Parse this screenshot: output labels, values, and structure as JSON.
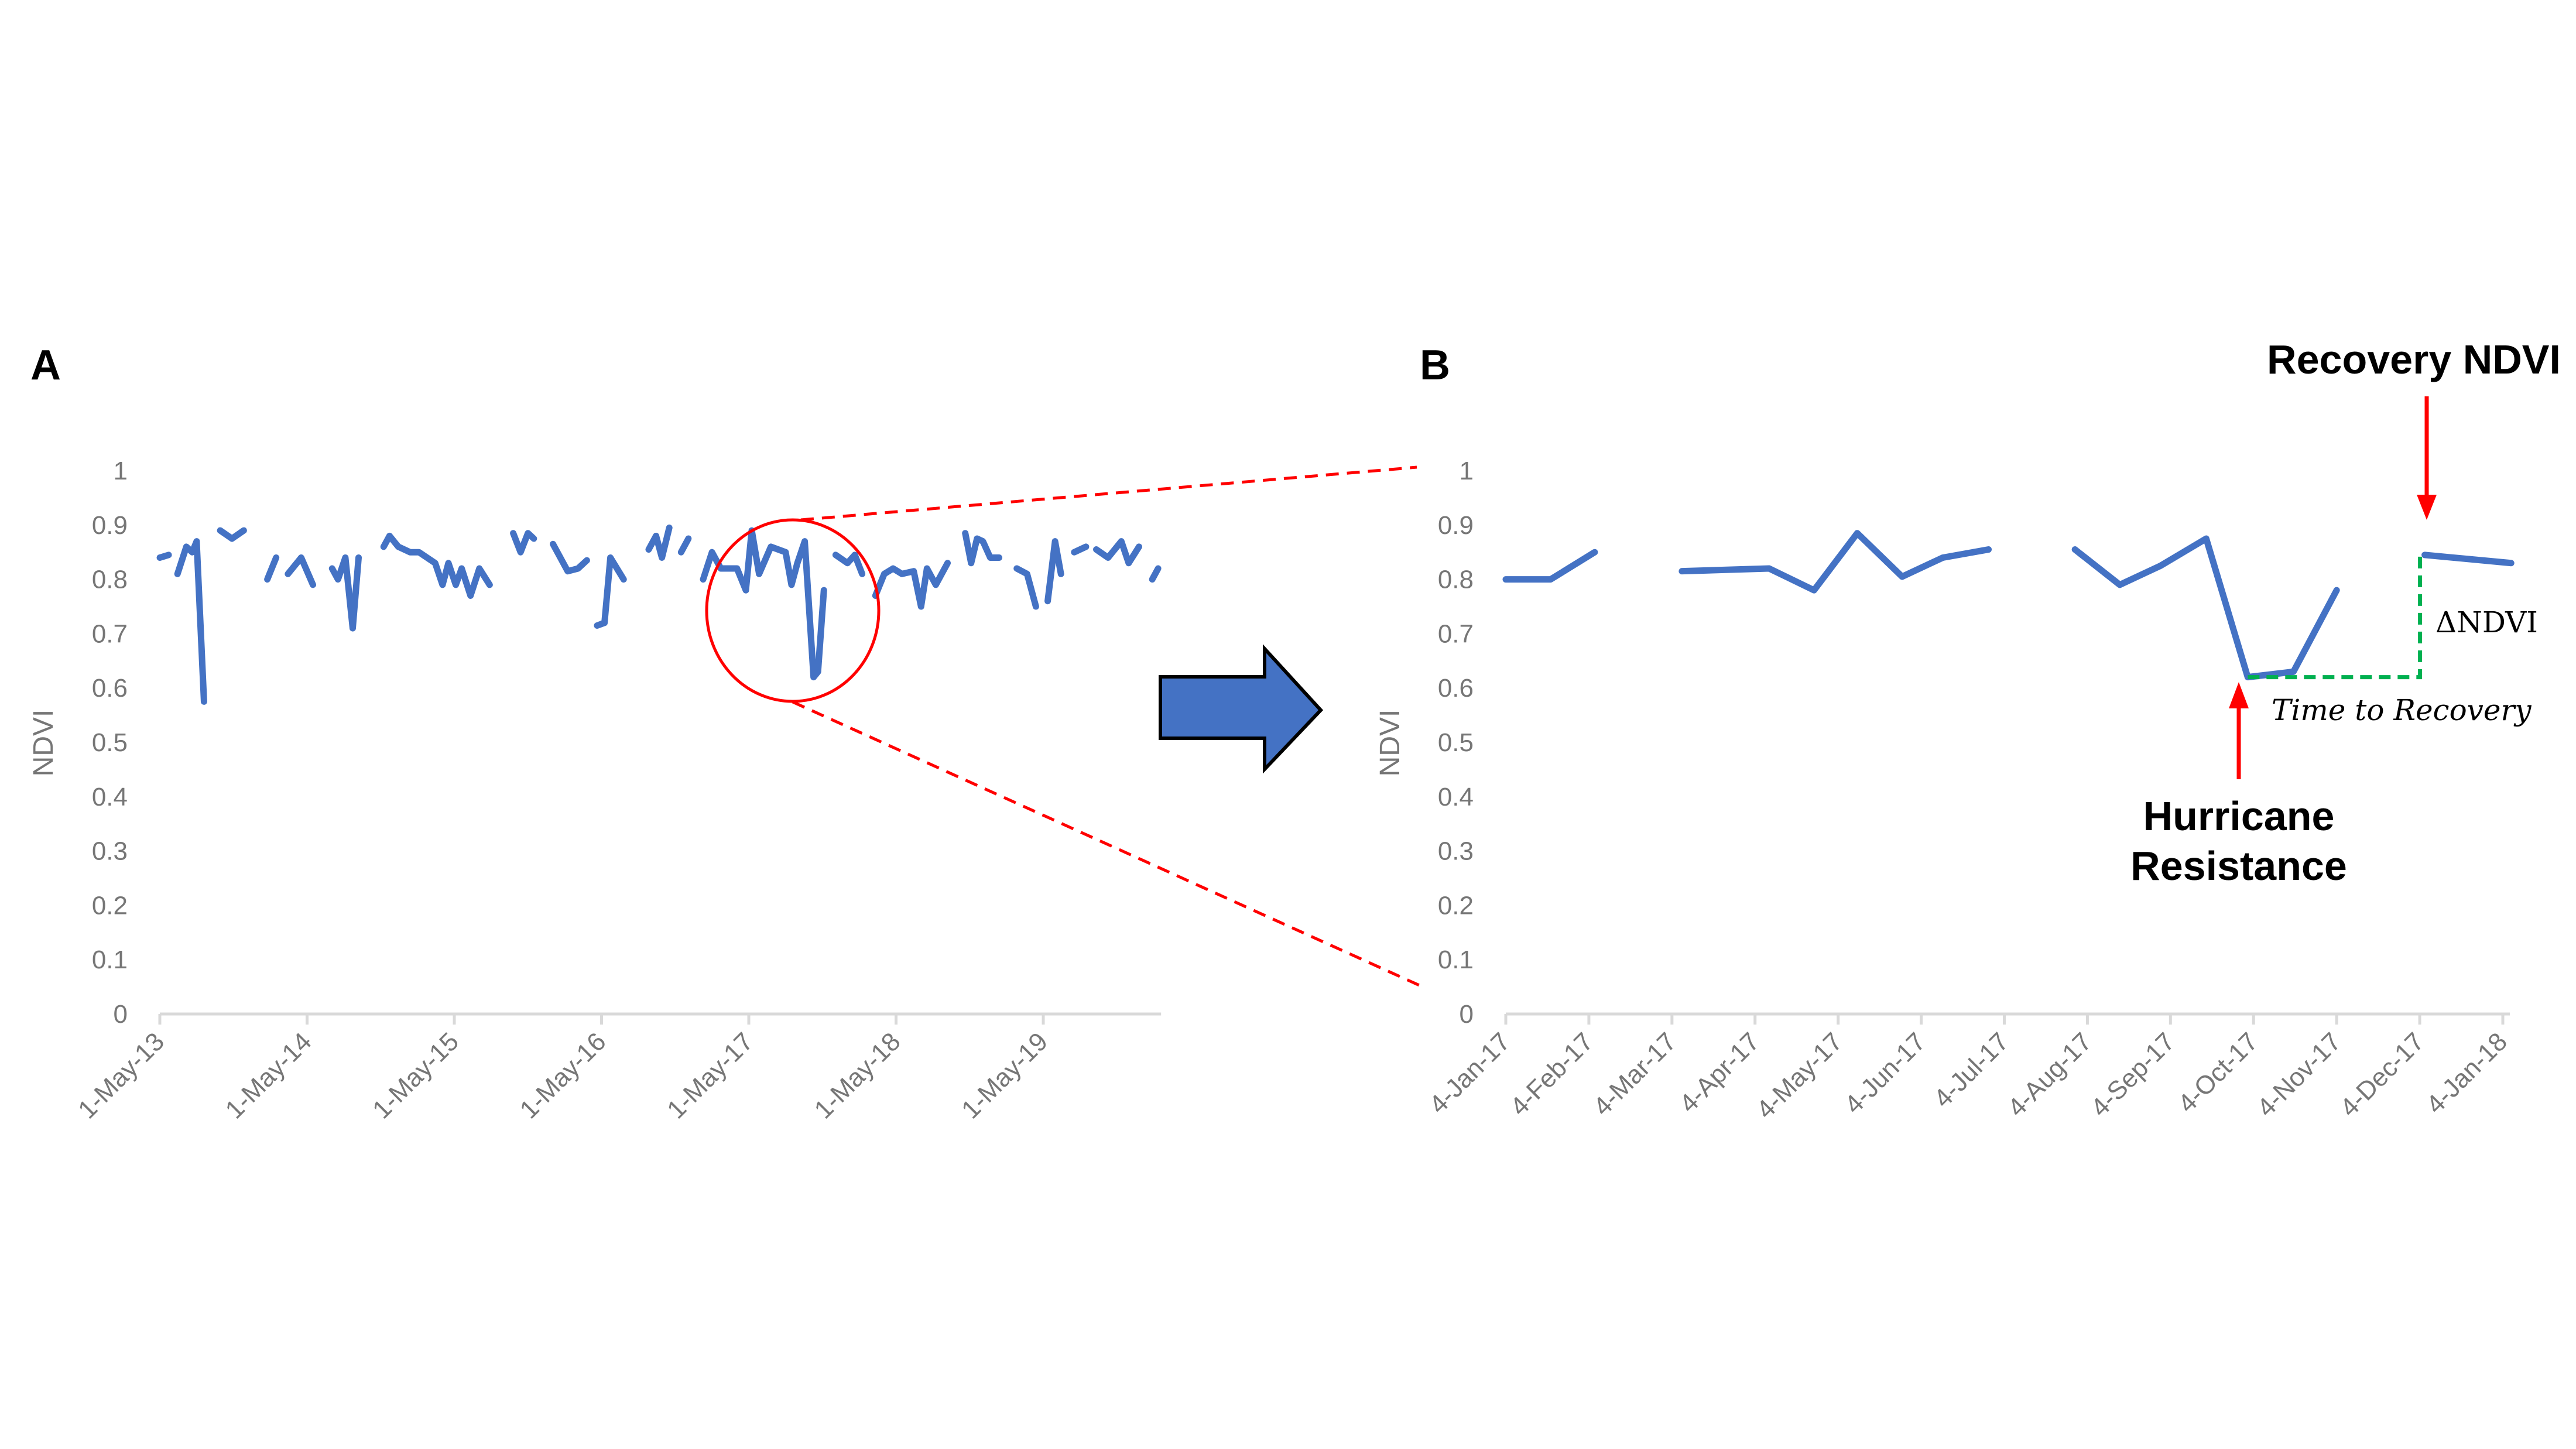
{
  "colors": {
    "series": "#4472C4",
    "axis": "#D9D9D9",
    "tick_text": "#767676",
    "zoom": "#FF0000",
    "delta": "#00B050",
    "arrow_fill": "#4472C4"
  },
  "chart_data": [
    {
      "panel": "A",
      "type": "line",
      "ylabel": "NDVI",
      "xlabel": "",
      "x_unit": "years since 1-May-13",
      "ylim": [
        0,
        1
      ],
      "yticks": [
        "0",
        "0.1",
        "0.2",
        "0.3",
        "0.4",
        "0.5",
        "0.6",
        "0.7",
        "0.8",
        "0.9",
        "1"
      ],
      "xticks": [
        "1-May-13",
        "1-May-14",
        "1-May-15",
        "1-May-16",
        "1-May-17",
        "1-May-18",
        "1-May-19"
      ],
      "xlim": [
        0,
        6.8
      ],
      "segments": [
        [
          [
            0,
            0.84
          ],
          [
            0.06,
            0.845
          ]
        ],
        [
          [
            0.12,
            0.81
          ],
          [
            0.18,
            0.86
          ],
          [
            0.22,
            0.85
          ],
          [
            0.25,
            0.87
          ],
          [
            0.3,
            0.575
          ]
        ],
        [
          [
            0.41,
            0.89
          ],
          [
            0.49,
            0.875
          ],
          [
            0.57,
            0.89
          ]
        ],
        [
          [
            0.73,
            0.8
          ],
          [
            0.79,
            0.84
          ]
        ],
        [
          [
            0.87,
            0.81
          ],
          [
            0.96,
            0.84
          ],
          [
            1.04,
            0.79
          ]
        ],
        [
          [
            1.17,
            0.82
          ],
          [
            1.21,
            0.8
          ],
          [
            1.26,
            0.84
          ],
          [
            1.31,
            0.71
          ],
          [
            1.35,
            0.84
          ]
        ],
        [
          [
            1.52,
            0.86
          ],
          [
            1.56,
            0.88
          ],
          [
            1.62,
            0.86
          ],
          [
            1.7,
            0.85
          ],
          [
            1.76,
            0.85
          ],
          [
            1.87,
            0.83
          ],
          [
            1.92,
            0.79
          ],
          [
            1.96,
            0.83
          ],
          [
            2.01,
            0.79
          ],
          [
            2.05,
            0.82
          ],
          [
            2.11,
            0.77
          ],
          [
            2.17,
            0.82
          ],
          [
            2.24,
            0.79
          ]
        ],
        [
          [
            2.4,
            0.885
          ],
          [
            2.45,
            0.85
          ],
          [
            2.5,
            0.885
          ],
          [
            2.54,
            0.875
          ]
        ],
        [
          [
            2.67,
            0.865
          ],
          [
            2.77,
            0.815
          ],
          [
            2.84,
            0.82
          ],
          [
            2.9,
            0.835
          ]
        ],
        [
          [
            2.97,
            0.715
          ],
          [
            3.02,
            0.72
          ],
          [
            3.06,
            0.84
          ],
          [
            3.15,
            0.8
          ]
        ],
        [
          [
            3.32,
            0.855
          ],
          [
            3.37,
            0.88
          ],
          [
            3.41,
            0.84
          ],
          [
            3.46,
            0.895
          ]
        ],
        [
          [
            3.54,
            0.85
          ],
          [
            3.59,
            0.875
          ]
        ],
        [
          [
            3.69,
            0.8
          ],
          [
            3.75,
            0.85
          ],
          [
            3.81,
            0.82
          ],
          [
            3.92,
            0.82
          ],
          [
            3.98,
            0.78
          ],
          [
            4.02,
            0.89
          ],
          [
            4.07,
            0.81
          ],
          [
            4.15,
            0.86
          ],
          [
            4.25,
            0.85
          ],
          [
            4.29,
            0.79
          ],
          [
            4.33,
            0.83
          ],
          [
            4.38,
            0.87
          ],
          [
            4.44,
            0.62
          ],
          [
            4.47,
            0.63
          ],
          [
            4.51,
            0.78
          ]
        ],
        [
          [
            4.59,
            0.845
          ],
          [
            4.67,
            0.83
          ],
          [
            4.72,
            0.845
          ],
          [
            4.77,
            0.81
          ]
        ],
        [
          [
            4.86,
            0.77
          ],
          [
            4.92,
            0.81
          ],
          [
            4.98,
            0.82
          ],
          [
            5.04,
            0.81
          ],
          [
            5.12,
            0.815
          ],
          [
            5.17,
            0.75
          ],
          [
            5.21,
            0.82
          ],
          [
            5.27,
            0.79
          ],
          [
            5.35,
            0.83
          ]
        ],
        [
          [
            5.47,
            0.885
          ],
          [
            5.51,
            0.83
          ],
          [
            5.55,
            0.875
          ],
          [
            5.59,
            0.87
          ],
          [
            5.64,
            0.84
          ],
          [
            5.7,
            0.84
          ]
        ],
        [
          [
            5.82,
            0.82
          ],
          [
            5.89,
            0.81
          ],
          [
            5.95,
            0.75
          ]
        ],
        [
          [
            6.03,
            0.76
          ],
          [
            6.08,
            0.87
          ],
          [
            6.12,
            0.81
          ]
        ],
        [
          [
            6.21,
            0.85
          ],
          [
            6.29,
            0.86
          ]
        ],
        [
          [
            6.36,
            0.855
          ],
          [
            6.44,
            0.84
          ],
          [
            6.53,
            0.87
          ],
          [
            6.58,
            0.83
          ],
          [
            6.65,
            0.86
          ]
        ],
        [
          [
            6.74,
            0.8
          ],
          [
            6.78,
            0.82
          ]
        ]
      ]
    },
    {
      "panel": "B",
      "type": "line",
      "ylabel": "NDVI",
      "xlabel": "",
      "x_unit": "months since 4-Jan-17",
      "ylim": [
        0,
        1
      ],
      "yticks": [
        "0",
        "0.1",
        "0.2",
        "0.3",
        "0.4",
        "0.5",
        "0.6",
        "0.7",
        "0.8",
        "0.9",
        "1"
      ],
      "xticks": [
        "4-Jan-17",
        "4-Feb-17",
        "4-Mar-17",
        "4-Apr-17",
        "4-May-17",
        "4-Jun-17",
        "4-Jul-17",
        "4-Aug-17",
        "4-Sep-17",
        "4-Oct-17",
        "4-Nov-17",
        "4-Dec-17",
        "4-Jan-18"
      ],
      "xlim": [
        0,
        12
      ],
      "segments": [
        [
          [
            0,
            0.8
          ],
          [
            0.54,
            0.8
          ],
          [
            1.07,
            0.85
          ]
        ],
        [
          [
            2.12,
            0.815
          ],
          [
            3.17,
            0.82
          ],
          [
            3.71,
            0.78
          ],
          [
            4.23,
            0.885
          ],
          [
            4.77,
            0.805
          ],
          [
            5.26,
            0.84
          ],
          [
            5.81,
            0.855
          ]
        ],
        [
          [
            6.85,
            0.855
          ],
          [
            7.39,
            0.79
          ],
          [
            7.88,
            0.825
          ],
          [
            8.43,
            0.875
          ],
          [
            8.93,
            0.62
          ],
          [
            9.48,
            0.63
          ],
          [
            10.0,
            0.78
          ]
        ],
        [
          [
            11.06,
            0.845
          ],
          [
            12.1,
            0.83
          ]
        ]
      ],
      "annotations": {
        "recovery": "Recovery NDVI",
        "delta": "ΔNDVI",
        "time": "Time to Recovery",
        "resistance_line1": "Hurricane",
        "resistance_line2": "Resistance",
        "low_value": 0.62,
        "recovery_value": 0.845,
        "low_x": 8.93,
        "recovery_x": 11.06
      }
    }
  ],
  "panels": {
    "a": "A",
    "b": "B"
  }
}
